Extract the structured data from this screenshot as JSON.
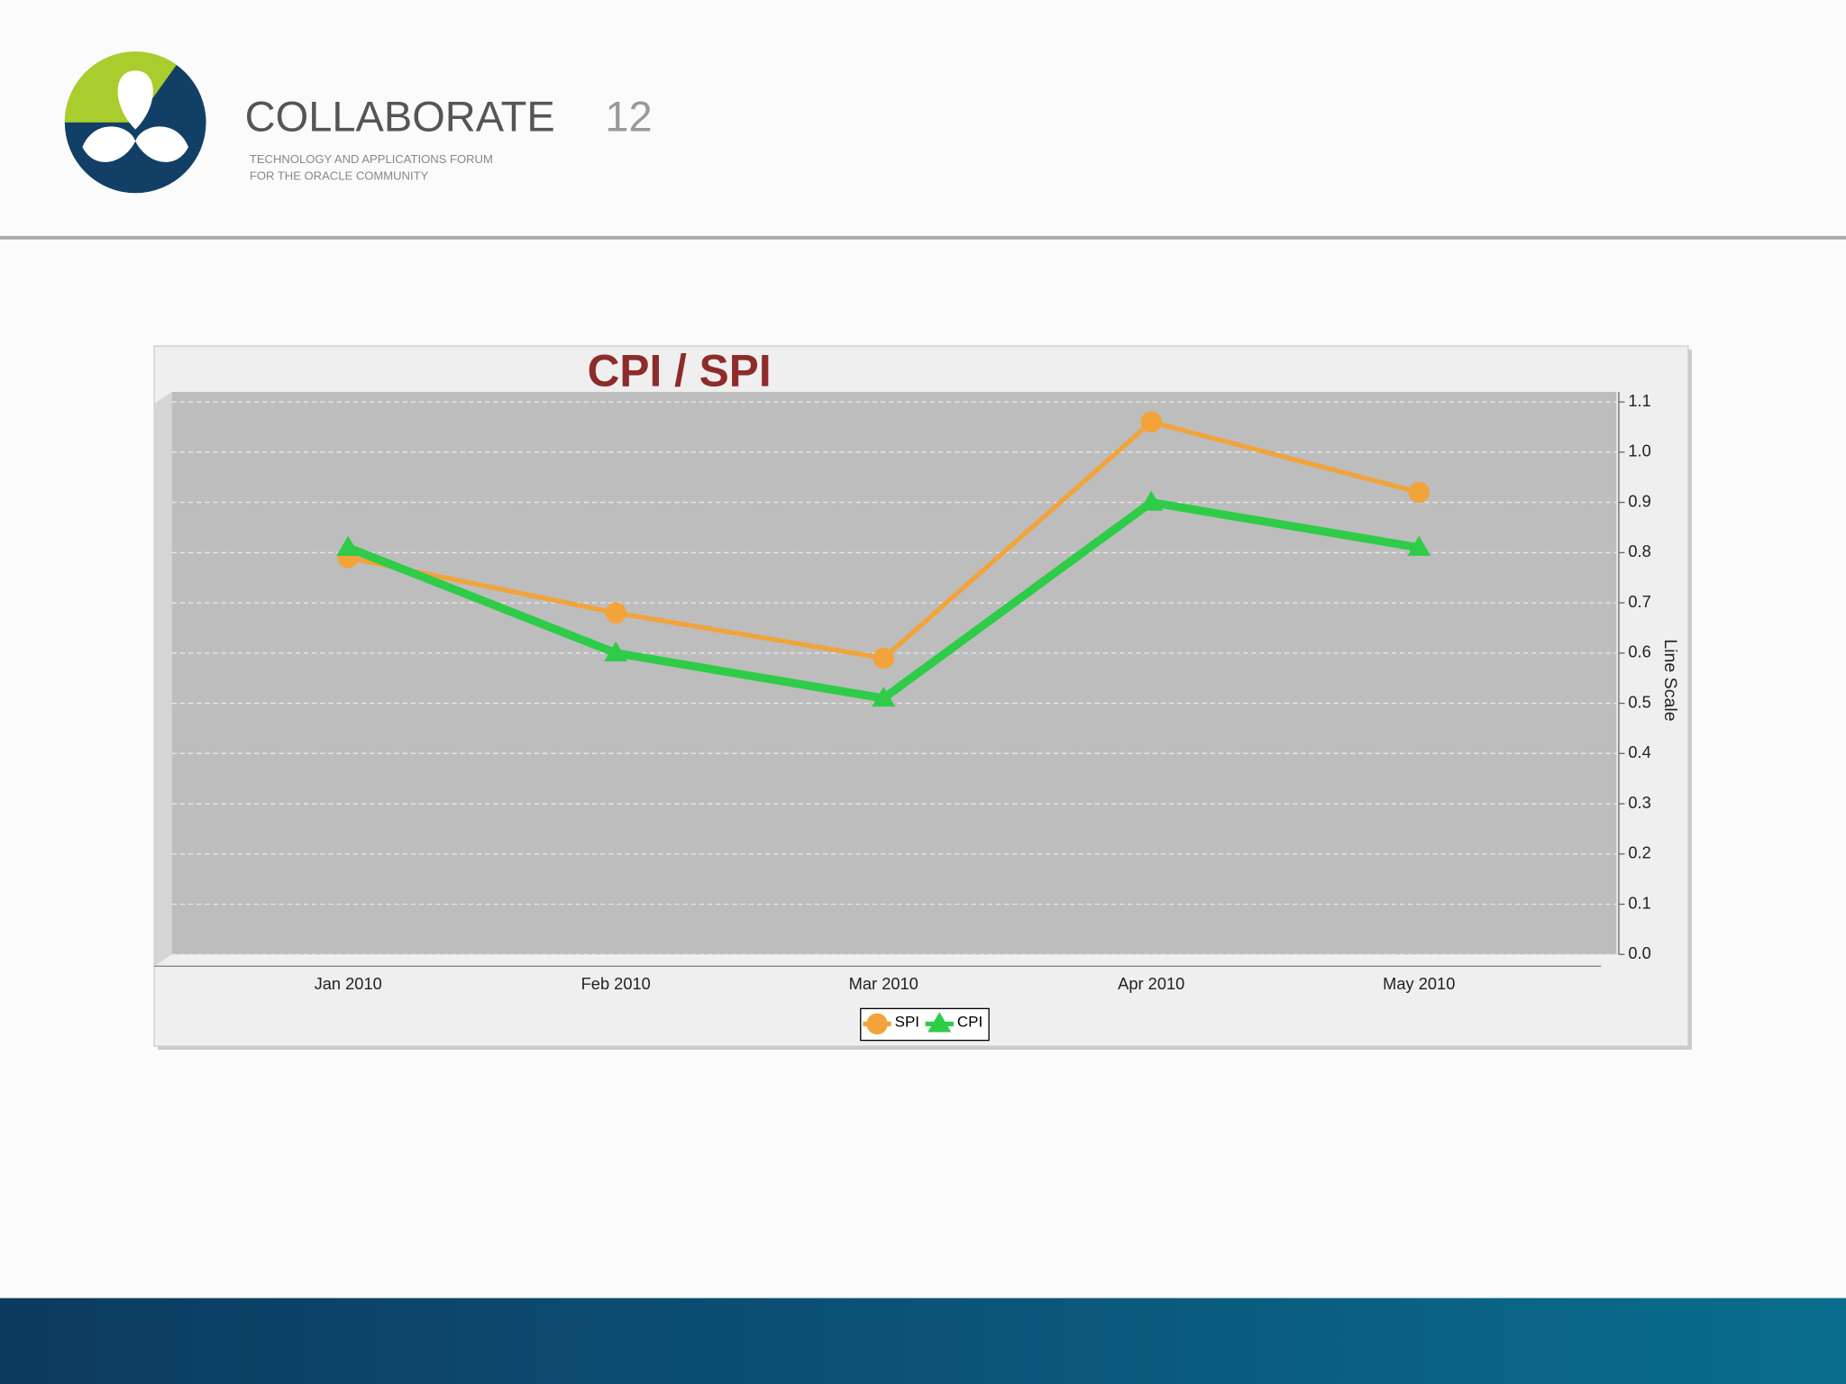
{
  "header": {
    "brand": "COLLABORATE",
    "edition": "12",
    "tagline_1": "TECHNOLOGY AND APPLICATIONS FORUM",
    "tagline_2": "FOR THE ORACLE COMMUNITY"
  },
  "chart_data": {
    "type": "line",
    "title": "CPI / SPI",
    "y_label": "Line Scale",
    "categories": [
      "Jan 2010",
      "Feb 2010",
      "Mar 2010",
      "Apr 2010",
      "May 2010"
    ],
    "series": [
      {
        "name": "SPI",
        "color": "#f2a33a",
        "marker": "circle",
        "values": [
          0.79,
          0.68,
          0.59,
          1.06,
          0.92
        ]
      },
      {
        "name": "CPI",
        "color": "#2ecc48",
        "marker": "triangle",
        "values": [
          0.81,
          0.6,
          0.51,
          0.9,
          0.81
        ]
      }
    ],
    "ylim": [
      0,
      1.12
    ],
    "yticks": [
      {
        "value": 0,
        "label": "0.0"
      },
      0.1,
      0.2,
      0.3,
      0.4,
      0.5,
      0.6,
      0.7,
      0.8,
      0.9,
      {
        "value": 1,
        "label": "1.0"
      },
      1.1
    ],
    "grid": true,
    "legend": "bottom"
  }
}
